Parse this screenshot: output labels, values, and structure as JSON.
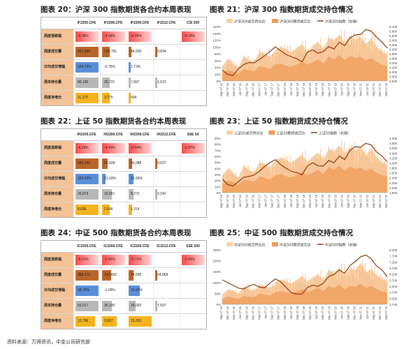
{
  "titles": {
    "t20": "图表 20：沪深 300 指数期货各合约本周表现",
    "t21": "图表 21：沪深 300 指数期货成交持仓情况",
    "t22": "图表 22：上证 50 指数期货各合约本周表现",
    "t23": "图表 23：上证 50 指数期货成交持仓情况",
    "t24": "图表 24：中证 500 指数期货各合约本周表现",
    "t25": "图表 25：中证 500 指数期货成交持仓情况"
  },
  "row_labels": [
    "周度涨跌幅",
    "周度成交量",
    "日均成交增幅",
    "周末持仓量",
    "周度净增仓"
  ],
  "tables": [
    {
      "headers": [
        "IF2205.CFE",
        "IF2206.CFE",
        "IF2209.CFE",
        "IF2212.CFE",
        "CSI 300"
      ],
      "rows": [
        [
          "-4.08%",
          "-4.04%",
          "-4.05%",
          "",
          "-4.19%"
        ],
        [
          "422,869",
          "138,761",
          "44,935",
          "9,834",
          ""
        ],
        [
          "124.73%",
          "-0.75%",
          "1.73%",
          "",
          ""
        ],
        [
          "86,186",
          "28,721",
          "7,897",
          "1,912",
          ""
        ],
        [
          "11,270",
          "3,775",
          "504",
          "",
          ""
        ]
      ]
    },
    {
      "headers": [
        "IH2205.CFE",
        "IH2206.CFE",
        "IH2209.CFE",
        "IH2212.CFE",
        "SSE 50"
      ],
      "rows": [
        [
          "-4.29%",
          "-4.43%",
          "-4.54%",
          "",
          "-3.97%"
        ],
        [
          "265,143",
          "65,828",
          "43,088",
          "9,537",
          ""
        ],
        [
          "152.62%",
          "21.93%",
          "31.56%",
          "",
          ""
        ],
        [
          "39,879",
          "16,661",
          "8,373",
          "2,342",
          ""
        ],
        [
          "8,096",
          "2,596",
          "1,314",
          "",
          ""
        ]
      ]
    },
    {
      "headers": [
        "IC2205.CFE",
        "IC2206.CFE",
        "IC2209.CFE",
        "IC2212.CFE",
        "SSE 500"
      ],
      "rows": [
        [
          "-5.51%",
          "-5.56%",
          "-5.73%",
          "",
          "-5.43%"
        ],
        [
          "358,173",
          "142,662",
          "74,558",
          "24,668",
          ""
        ],
        [
          "68.23%",
          "-1.09%",
          "32.91%",
          "",
          ""
        ],
        [
          "83,917",
          "36,195",
          "26,002",
          "7,597",
          ""
        ],
        [
          "12,796",
          "9,667",
          "15,301",
          "",
          ""
        ]
      ]
    }
  ],
  "legends": {
    "c21": [
      "沪深300成交持仓比",
      "沪深300期货成交比",
      "沪深300指数（右轴）"
    ],
    "c23": [
      "上证50成交持仓比",
      "上证50期货成交比",
      "上证50指数（右轴）"
    ],
    "c25": [
      "中证500成交持仓比",
      "中证500期货成交比",
      "中证500指数（右轴）"
    ]
  },
  "chart_data": [
    {
      "type": "area",
      "left_axis": [
        "160%",
        "140%",
        "120%",
        "100%",
        "80%",
        "60%",
        "40%",
        "20%",
        "0%"
      ],
      "right_axis": [
        "6,100",
        "5,800",
        "5,600",
        "5,400",
        "5,200",
        "5,000",
        "4,800",
        "4,600",
        "4,400",
        "4,200",
        "4,000",
        "3,800",
        "3,600"
      ],
      "x_labels": [
        "Sep 07 15",
        "Dec 07 15",
        "Mar 07 16",
        "Jun 07 16",
        "Sep 07 16",
        "Dec 07 16",
        "Mar 07 17",
        "Jun 07 17",
        "Sep 07 17",
        "Dec 07 17",
        "Mar 07 18",
        "Jun 07 18",
        "Sep 07 18",
        "Dec 07 18",
        "Mar 07 19",
        "Jun 07 19",
        "Sep 07 19",
        "Dec 07 19",
        "Mar 07 20",
        "Jun 07 20",
        "Sep 07 20",
        "Dec 07 20",
        "Mar 07 21",
        "Jun 07 21",
        "Sep 07 21",
        "Dec 07 21",
        "Mar 07 22"
      ],
      "index_series": [
        0.2,
        0.12,
        0.1,
        0.22,
        0.3,
        0.34,
        0.33,
        0.4,
        0.46,
        0.55,
        0.62,
        0.56,
        0.48,
        0.45,
        0.4,
        0.36,
        0.52,
        0.58,
        0.5,
        0.55,
        0.62,
        0.6,
        0.7,
        0.66,
        0.78,
        0.86,
        0.84,
        0.96,
        0.9,
        0.82,
        0.7,
        0.62
      ],
      "volume_series": [
        0.3,
        0.45,
        0.35,
        0.28,
        0.5,
        0.42,
        0.4,
        0.6,
        0.55,
        0.5,
        0.62,
        0.7,
        0.66,
        0.58,
        0.68,
        0.75,
        0.6,
        0.72,
        0.8,
        0.65,
        0.88,
        0.82,
        0.95,
        0.78,
        0.92,
        0.85,
        0.9,
        0.75,
        0.88,
        0.7,
        0.6,
        0.55
      ],
      "ratio_series": [
        0.15,
        0.2,
        0.18,
        0.12,
        0.22,
        0.2,
        0.18,
        0.28,
        0.25,
        0.22,
        0.3,
        0.32,
        0.28,
        0.26,
        0.3,
        0.36,
        0.3,
        0.34,
        0.4,
        0.32,
        0.45,
        0.4,
        0.48,
        0.38,
        0.46,
        0.42,
        0.45,
        0.38,
        0.42,
        0.35,
        0.3,
        0.28
      ]
    },
    {
      "type": "area",
      "left_axis": [
        "90%",
        "80%",
        "70%",
        "60%",
        "50%",
        "40%",
        "30%",
        "20%",
        "10%",
        "0%"
      ],
      "right_axis": [
        "4,000",
        "3,800",
        "3,600",
        "3,400",
        "3,200",
        "3,000",
        "2,800",
        "2,600",
        "2,400",
        "2,200",
        "2,000",
        "1,800"
      ],
      "x_labels": [
        "Sep 07 15",
        "Dec 07 15",
        "Mar 07 16",
        "Jun 07 16",
        "Sep 07 16",
        "Dec 07 16",
        "Mar 07 17",
        "Jun 07 17",
        "Sep 07 17",
        "Dec 07 17",
        "Mar 07 18",
        "Jun 07 18",
        "Sep 07 18",
        "Dec 07 18",
        "Mar 07 19",
        "Jun 07 19",
        "Sep 07 19",
        "Dec 07 19",
        "Mar 07 20",
        "Jun 07 20",
        "Sep 07 20",
        "Dec 07 20",
        "Mar 07 21",
        "Jun 07 21",
        "Sep 07 21",
        "Dec 07 21",
        "Mar 07 22"
      ],
      "index_series": [
        0.25,
        0.15,
        0.12,
        0.2,
        0.28,
        0.3,
        0.32,
        0.4,
        0.48,
        0.56,
        0.6,
        0.52,
        0.44,
        0.4,
        0.36,
        0.34,
        0.48,
        0.56,
        0.48,
        0.5,
        0.58,
        0.56,
        0.66,
        0.62,
        0.76,
        0.86,
        0.82,
        0.92,
        0.86,
        0.76,
        0.66,
        0.58
      ],
      "volume_series": [
        0.35,
        0.5,
        0.4,
        0.3,
        0.55,
        0.45,
        0.42,
        0.62,
        0.58,
        0.52,
        0.66,
        0.72,
        0.68,
        0.6,
        0.7,
        0.78,
        0.62,
        0.74,
        0.82,
        0.68,
        0.9,
        0.84,
        0.96,
        0.8,
        0.94,
        0.86,
        0.92,
        0.76,
        0.9,
        0.72,
        0.62,
        0.58
      ],
      "ratio_series": [
        0.16,
        0.22,
        0.2,
        0.14,
        0.24,
        0.22,
        0.2,
        0.3,
        0.27,
        0.24,
        0.32,
        0.34,
        0.3,
        0.28,
        0.32,
        0.38,
        0.32,
        0.36,
        0.42,
        0.34,
        0.47,
        0.42,
        0.5,
        0.4,
        0.48,
        0.44,
        0.46,
        0.4,
        0.44,
        0.36,
        0.32,
        0.3
      ]
    },
    {
      "type": "area",
      "left_axis": [
        "250%",
        "200%",
        "150%",
        "100%",
        "50%",
        "0%"
      ],
      "right_axis": [
        "8,200",
        "7,700",
        "7,200",
        "6,700",
        "6,200",
        "5,700",
        "5,200",
        "4,700",
        "4,200",
        "3,700"
      ],
      "x_labels": [
        "Sep 07 15",
        "Dec 07 15",
        "Mar 07 16",
        "Jun 07 16",
        "Sep 07 16",
        "Dec 07 16",
        "Mar 07 17",
        "Jun 07 17",
        "Sep 07 17",
        "Dec 07 17",
        "Mar 07 18",
        "Jun 07 18",
        "Sep 07 18",
        "Dec 07 18",
        "Mar 07 19",
        "Jun 07 19",
        "Sep 07 19",
        "Dec 07 19",
        "Mar 07 20",
        "Jun 07 20",
        "Sep 07 20",
        "Dec 07 20",
        "Mar 07 21",
        "Jun 07 21",
        "Sep 07 21",
        "Dec 07 21",
        "Mar 07 22"
      ],
      "index_series": [
        0.45,
        0.4,
        0.35,
        0.3,
        0.28,
        0.34,
        0.36,
        0.32,
        0.3,
        0.4,
        0.46,
        0.42,
        0.3,
        0.22,
        0.18,
        0.2,
        0.3,
        0.36,
        0.32,
        0.4,
        0.5,
        0.56,
        0.62,
        0.58,
        0.7,
        0.8,
        0.86,
        0.92,
        0.82,
        0.72,
        0.62,
        0.52
      ],
      "volume_series": [
        0.2,
        0.3,
        0.28,
        0.22,
        0.35,
        0.3,
        0.28,
        0.4,
        0.36,
        0.34,
        0.45,
        0.5,
        0.48,
        0.42,
        0.5,
        0.58,
        0.46,
        0.55,
        0.62,
        0.5,
        0.7,
        0.64,
        0.76,
        0.6,
        0.74,
        0.7,
        0.85,
        0.66,
        0.72,
        0.6,
        0.52,
        0.48
      ],
      "ratio_series": [
        0.1,
        0.14,
        0.12,
        0.1,
        0.16,
        0.14,
        0.13,
        0.2,
        0.18,
        0.16,
        0.22,
        0.24,
        0.22,
        0.2,
        0.24,
        0.28,
        0.22,
        0.26,
        0.3,
        0.24,
        0.34,
        0.3,
        0.36,
        0.28,
        0.34,
        0.32,
        0.38,
        0.3,
        0.34,
        0.28,
        0.24,
        0.22
      ]
    }
  ],
  "source": "资料来源：万得资讯，中金公司研究部"
}
